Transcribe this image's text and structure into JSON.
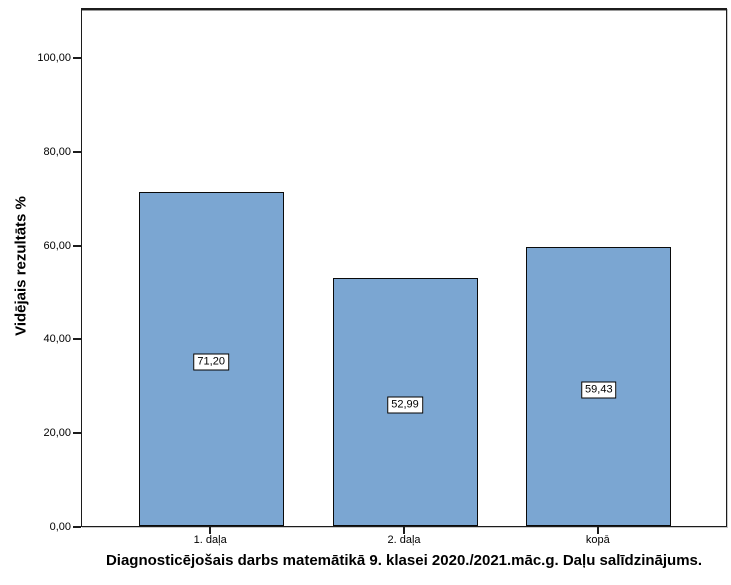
{
  "chart": {
    "colors": {
      "bar_fill": "#7BA6D2",
      "bar_border": "#0a0a0a",
      "plot_border": "#1c1c1c",
      "background": "#ffffff",
      "text": "#000000"
    }
  },
  "chart_data": {
    "type": "bar",
    "categories": [
      "1. daļa",
      "2. daļa",
      "kopā"
    ],
    "values": [
      71.2,
      52.99,
      59.43
    ],
    "value_labels": [
      "71,20",
      "52,99",
      "59,43"
    ],
    "title": "Diagnosticējošais darbs matemātikā 9. klasei 2020./2021.māc.g. Daļu salīdzinājums.",
    "xlabel": "",
    "ylabel": "Vidējais rezultāts %",
    "ylim": [
      0,
      110.7
    ],
    "yticks": [
      0,
      20,
      40,
      60,
      80,
      100
    ],
    "ytick_labels": [
      "0,00",
      "20,00",
      "40,00",
      "60,00",
      "80,00",
      "100,00"
    ],
    "grid": false,
    "legend": "none",
    "value_label_style": "boxed white label centered inside each bar",
    "title_position": "below x-axis",
    "bar_border": true
  }
}
